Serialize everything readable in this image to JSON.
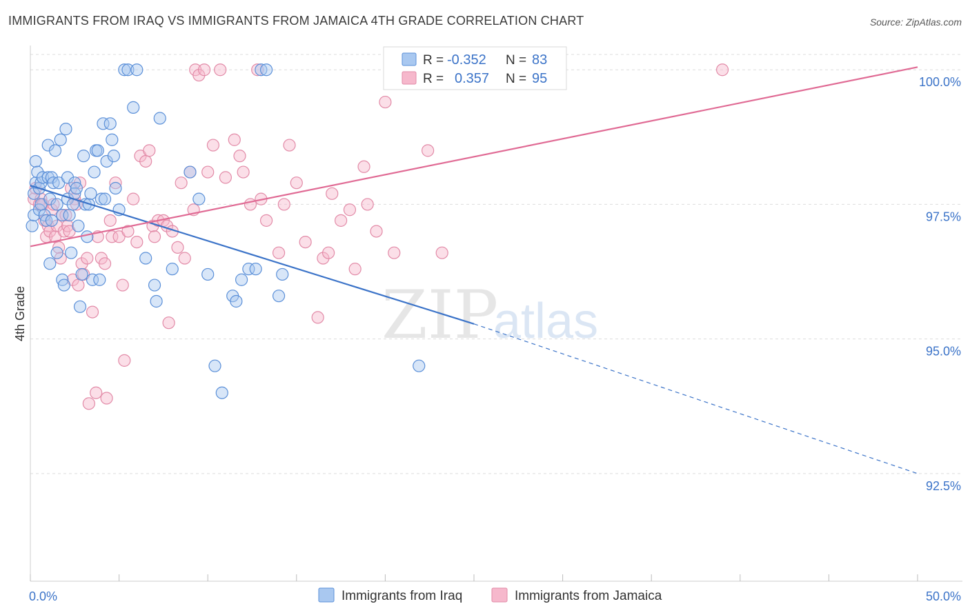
{
  "header": {
    "title": "IMMIGRANTS FROM IRAQ VS IMMIGRANTS FROM JAMAICA 4TH GRADE CORRELATION CHART",
    "source": "Source: ZipAtlas.com"
  },
  "watermark": {
    "zip": "ZIP",
    "atlas": "atlas"
  },
  "colors": {
    "iraq_fill": "#a9c8f0",
    "iraq_stroke": "#5a8fd8",
    "iraq_line": "#3b73c8",
    "jamaica_fill": "#f6b8cc",
    "jamaica_stroke": "#e28aa7",
    "jamaica_line": "#e06a94",
    "grid": "#dcdcdc",
    "tick_label": "#3b73c8"
  },
  "stats_legend": {
    "r_label": "R =",
    "n_label": "N =",
    "rows": [
      {
        "series": "Immigrants from Iraq",
        "r": "-0.352",
        "n": "83"
      },
      {
        "series": "Immigrants from Jamaica",
        "r": "0.357",
        "n": "95"
      }
    ]
  },
  "chart_data": {
    "type": "scatter",
    "title": "IMMIGRANTS FROM IRAQ VS IMMIGRANTS FROM JAMAICA 4TH GRADE CORRELATION CHART",
    "xlabel": "",
    "ylabel": "4th Grade",
    "xlim": [
      0,
      50
    ],
    "ylim": [
      90.5,
      100.4
    ],
    "x_tick_labels": [
      "0.0%",
      "50.0%"
    ],
    "y_tick_labels": [
      "100.0%",
      "97.5%",
      "95.0%",
      "92.5%"
    ],
    "y_ticks": [
      100.0,
      97.5,
      95.0,
      92.5
    ],
    "grid": true,
    "legend_position": "bottom",
    "series": [
      {
        "name": "Immigrants from Iraq",
        "r": -0.352,
        "n": 83,
        "trend": {
          "x": [
            0.0,
            25.0
          ],
          "y": [
            97.85,
            95.28
          ],
          "dashed_to": [
            50.0,
            92.5
          ]
        },
        "x": [
          0.1,
          0.2,
          0.2,
          0.3,
          0.3,
          0.4,
          0.5,
          0.5,
          0.6,
          0.6,
          0.7,
          0.8,
          0.9,
          1.0,
          1.0,
          1.1,
          1.1,
          1.2,
          1.2,
          1.3,
          1.4,
          1.5,
          1.5,
          1.6,
          1.7,
          1.8,
          1.8,
          1.9,
          2.0,
          2.1,
          2.1,
          2.2,
          2.3,
          2.4,
          2.5,
          2.5,
          2.6,
          2.7,
          2.8,
          2.9,
          3.0,
          3.1,
          3.2,
          3.3,
          3.4,
          3.5,
          3.6,
          3.7,
          3.8,
          3.9,
          4.0,
          4.1,
          4.2,
          4.3,
          4.5,
          4.6,
          4.7,
          4.8,
          5.0,
          5.3,
          5.5,
          5.8,
          6.0,
          6.5,
          7.0,
          7.1,
          7.3,
          8.0,
          9.0,
          9.5,
          10.0,
          10.4,
          10.8,
          11.4,
          11.6,
          11.9,
          12.3,
          12.7,
          13.0,
          13.3,
          14.0,
          14.2,
          21.9
        ],
        "y": [
          97.1,
          97.7,
          97.3,
          98.3,
          97.9,
          98.1,
          97.8,
          97.4,
          97.9,
          97.5,
          98.0,
          97.3,
          97.2,
          98.6,
          98.0,
          97.6,
          96.4,
          97.2,
          98.0,
          97.9,
          98.5,
          96.6,
          97.5,
          97.9,
          98.7,
          97.3,
          96.1,
          96.0,
          98.9,
          98.0,
          97.6,
          97.3,
          96.6,
          97.5,
          97.9,
          97.7,
          97.8,
          97.1,
          95.6,
          96.2,
          98.4,
          97.5,
          96.9,
          97.5,
          97.7,
          96.1,
          98.1,
          98.5,
          98.5,
          96.1,
          97.6,
          99.0,
          97.6,
          98.3,
          99.0,
          98.7,
          98.4,
          97.8,
          97.4,
          100.0,
          100.0,
          99.3,
          100.0,
          96.5,
          96.0,
          95.7,
          99.1,
          96.3,
          98.1,
          97.6,
          96.2,
          94.5,
          94.0,
          95.8,
          95.7,
          96.1,
          96.3,
          96.3,
          100.0,
          100.0,
          95.8,
          96.2,
          94.5
        ]
      },
      {
        "name": "Immigrants from Jamaica",
        "r": 0.357,
        "n": 95,
        "trend": {
          "x": [
            0.0,
            50.0
          ],
          "y": [
            96.72,
            100.05
          ]
        },
        "x": [
          0.2,
          0.3,
          0.5,
          0.6,
          0.7,
          0.8,
          0.9,
          1.0,
          1.1,
          1.2,
          1.3,
          1.4,
          1.5,
          1.6,
          1.7,
          1.8,
          1.9,
          2.0,
          2.1,
          2.2,
          2.3,
          2.4,
          2.5,
          2.6,
          2.7,
          2.8,
          2.9,
          3.0,
          3.2,
          3.3,
          3.5,
          3.7,
          3.8,
          4.0,
          4.2,
          4.3,
          4.5,
          4.6,
          4.8,
          5.0,
          5.2,
          5.3,
          5.5,
          5.8,
          6.0,
          6.2,
          6.5,
          6.7,
          6.9,
          7.0,
          7.2,
          7.5,
          7.7,
          7.8,
          8.0,
          8.3,
          8.5,
          8.7,
          9.0,
          9.2,
          9.3,
          9.5,
          9.8,
          10.0,
          10.3,
          10.7,
          11.0,
          11.5,
          11.8,
          12.0,
          12.4,
          12.8,
          13.0,
          13.3,
          14.0,
          14.3,
          14.6,
          15.0,
          15.5,
          16.2,
          16.5,
          16.8,
          17.0,
          17.5,
          18.0,
          18.3,
          18.8,
          19.0,
          19.5,
          20.0,
          20.5,
          22.0,
          22.4,
          23.2,
          39.0
        ],
        "y": [
          97.6,
          97.8,
          97.5,
          97.6,
          97.5,
          97.2,
          96.9,
          97.1,
          97.0,
          97.4,
          97.5,
          96.9,
          97.1,
          96.7,
          96.5,
          97.3,
          97.0,
          97.3,
          97.1,
          97.0,
          97.8,
          96.1,
          97.6,
          97.5,
          96.0,
          97.9,
          96.4,
          96.2,
          96.5,
          93.8,
          95.5,
          94.0,
          96.9,
          96.5,
          96.4,
          93.9,
          97.2,
          96.9,
          97.9,
          96.9,
          96.0,
          94.6,
          97.0,
          97.6,
          96.8,
          98.4,
          98.3,
          98.5,
          97.1,
          96.9,
          97.2,
          97.2,
          97.1,
          95.3,
          97.0,
          96.7,
          97.9,
          96.5,
          98.1,
          97.4,
          100.0,
          99.9,
          100.0,
          98.1,
          98.6,
          100.0,
          98.0,
          98.7,
          98.4,
          98.1,
          97.5,
          100.0,
          97.6,
          97.2,
          96.6,
          97.5,
          98.6,
          97.9,
          96.8,
          95.4,
          96.5,
          96.6,
          97.7,
          97.2,
          97.4,
          96.3,
          98.2,
          97.5,
          97.0,
          99.4,
          96.6,
          99.9,
          98.5,
          96.6,
          100.0
        ]
      }
    ]
  },
  "bottom_legend": [
    {
      "label": "Immigrants from Iraq"
    },
    {
      "label": "Immigrants from Jamaica"
    }
  ]
}
